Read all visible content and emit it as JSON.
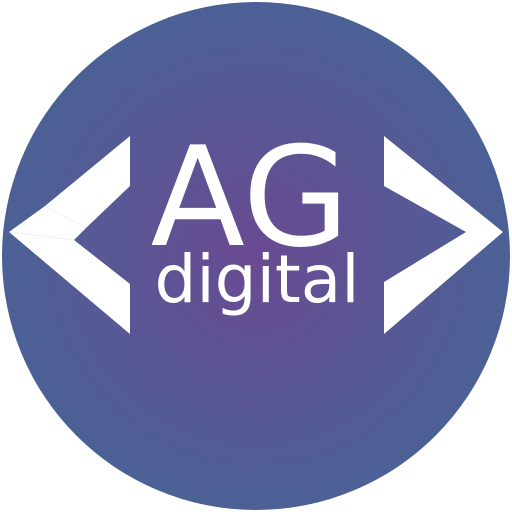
{
  "logo": {
    "monogram": "AG",
    "wordmark": "digital",
    "colors": {
      "circle_center": "#6a4a92",
      "circle_edge": "#4b6196",
      "foreground": "#ffffff"
    },
    "icons": {
      "left_bracket": "chevron-left-icon",
      "right_bracket": "chevron-right-icon"
    }
  }
}
